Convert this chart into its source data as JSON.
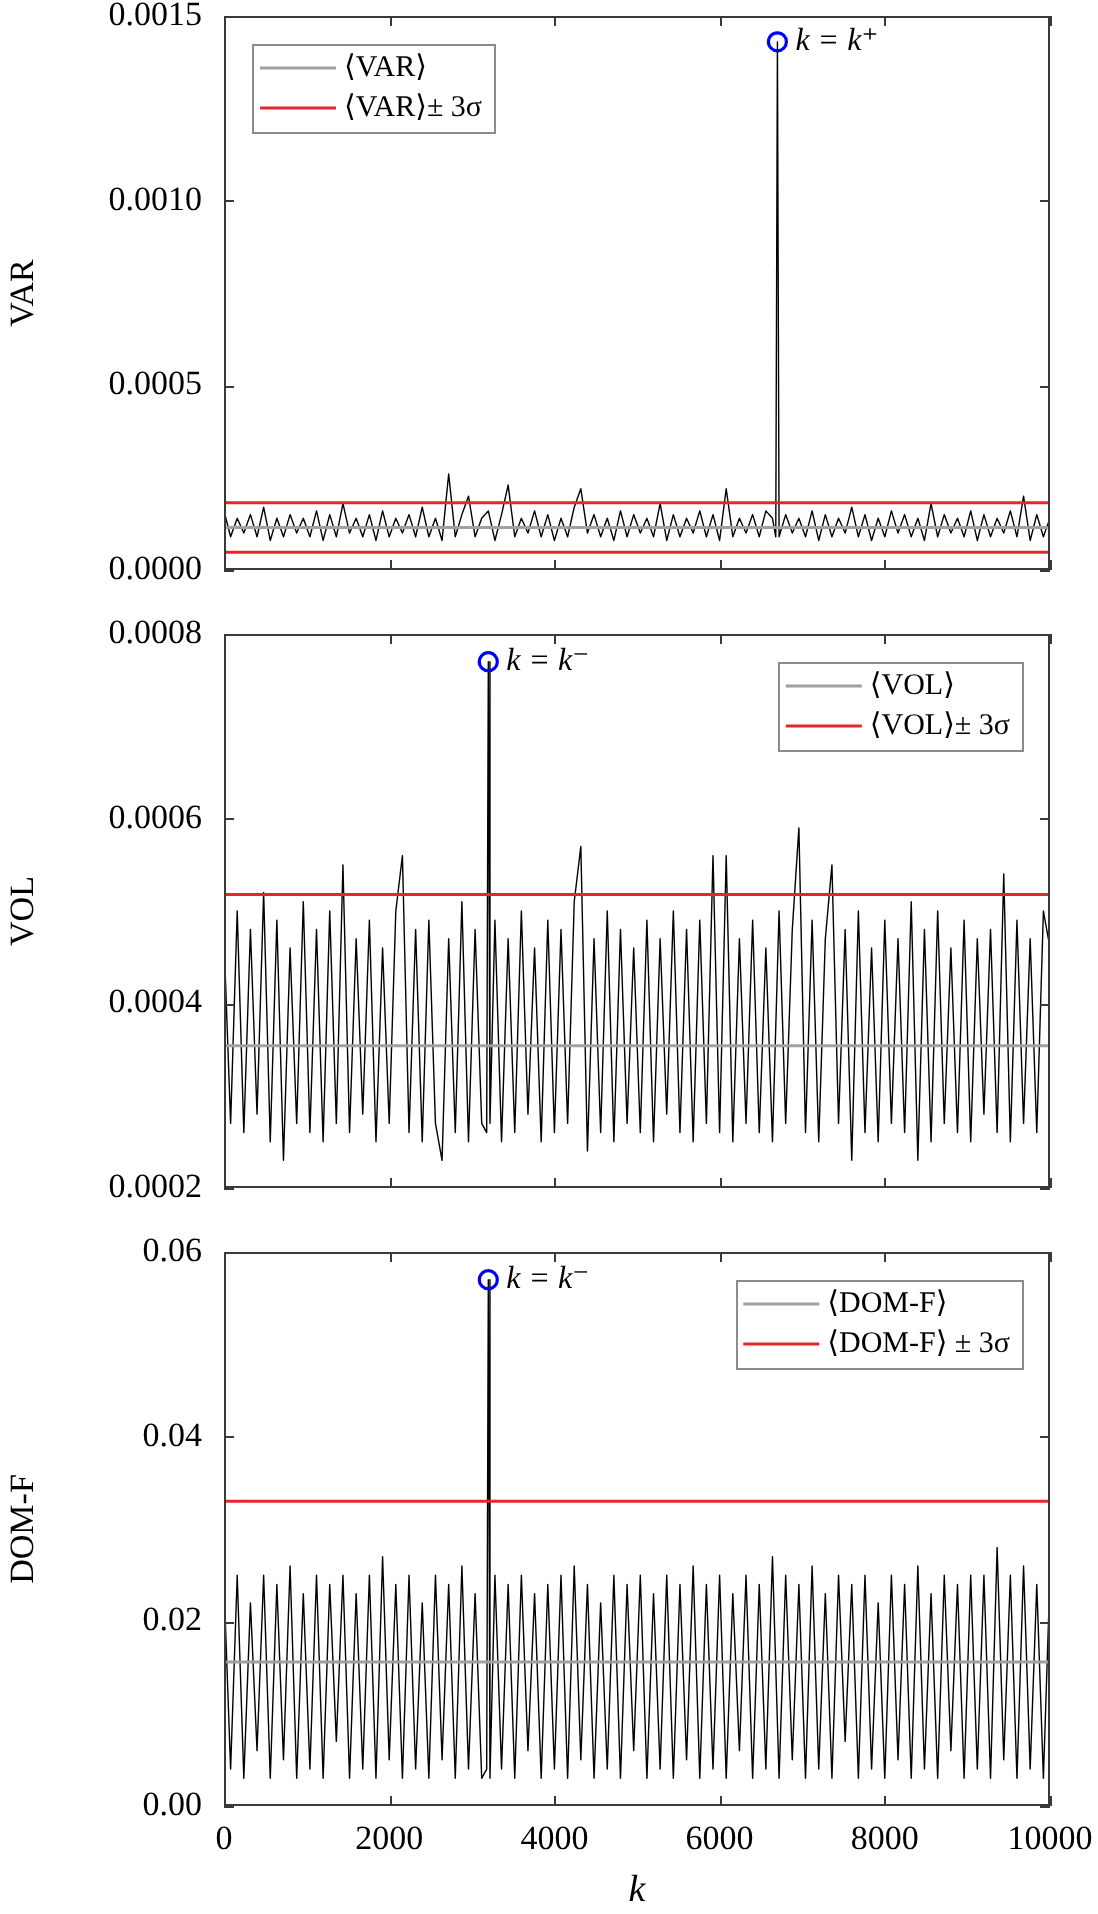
{
  "chart_data": [
    {
      "type": "line",
      "ylabel": "VAR",
      "legend": "top left",
      "tick_labels": "y",
      "xlim": [
        0,
        10000
      ],
      "xticks": [
        0,
        2000,
        4000,
        6000,
        8000,
        10000
      ],
      "ylim": [
        0,
        0.0015
      ],
      "yticks": [
        {
          "value": 0,
          "label": "0.0000"
        },
        0.0005,
        {
          "value": 0.001,
          "label": "0.0010"
        },
        0.0015
      ],
      "x": [
        0,
        80,
        160,
        240,
        320,
        400,
        480,
        560,
        640,
        720,
        800,
        880,
        960,
        1040,
        1120,
        1200,
        1280,
        1360,
        1440,
        1520,
        1600,
        1680,
        1760,
        1840,
        1920,
        2000,
        2080,
        2160,
        2240,
        2320,
        2400,
        2480,
        2560,
        2640,
        2720,
        2800,
        2880,
        2960,
        3040,
        3120,
        3200,
        3280,
        3360,
        3440,
        3520,
        3600,
        3680,
        3760,
        3840,
        3920,
        4000,
        4080,
        4160,
        4240,
        4320,
        4400,
        4480,
        4560,
        4640,
        4720,
        4800,
        4880,
        4960,
        5040,
        5120,
        5200,
        5280,
        5360,
        5440,
        5520,
        5600,
        5680,
        5760,
        5840,
        5920,
        6000,
        6080,
        6160,
        6240,
        6320,
        6400,
        6480,
        6560,
        6640,
        6680,
        6700,
        6720,
        6800,
        6880,
        6960,
        7040,
        7120,
        7200,
        7280,
        7360,
        7440,
        7520,
        7600,
        7680,
        7760,
        7840,
        7920,
        8000,
        8080,
        8160,
        8240,
        8320,
        8400,
        8480,
        8560,
        8640,
        8720,
        8800,
        8880,
        8960,
        9040,
        9120,
        9200,
        9280,
        9360,
        9440,
        9520,
        9600,
        9680,
        9760,
        9840,
        9920,
        10000
      ],
      "series": [
        {
          "color": "#000000",
          "values": [
            0.00016,
            9e-05,
            0.00014,
            0.0001,
            0.00015,
            9e-05,
            0.00017,
            8e-05,
            0.00014,
            9e-05,
            0.00015,
            0.0001,
            0.00014,
            9e-05,
            0.00016,
            8e-05,
            0.00015,
            9e-05,
            0.00018,
            0.0001,
            0.00014,
            9e-05,
            0.00015,
            8e-05,
            0.00016,
            9e-05,
            0.00014,
            0.0001,
            0.00015,
            9e-05,
            0.00017,
            9e-05,
            0.00014,
            8e-05,
            0.00026,
            9e-05,
            0.00015,
            0.0002,
            9e-05,
            0.00014,
            0.00016,
            8e-05,
            0.00015,
            0.00023,
            9e-05,
            0.00014,
            0.0001,
            0.00016,
            9e-05,
            0.00015,
            8e-05,
            0.00014,
            9e-05,
            0.00017,
            0.00022,
            0.0001,
            0.00015,
            9e-05,
            0.00014,
            8e-05,
            0.00016,
            9e-05,
            0.00015,
            0.0001,
            0.00014,
            9e-05,
            0.00018,
            8e-05,
            0.00015,
            9e-05,
            0.00014,
            0.0001,
            0.00016,
            9e-05,
            0.00015,
            8e-05,
            0.00022,
            9e-05,
            0.00014,
            0.0001,
            0.00015,
            9e-05,
            0.00016,
            0.00014,
            9e-05,
            0.00143,
            9e-05,
            0.00015,
            0.0001,
            0.00014,
            9e-05,
            0.00016,
            8e-05,
            0.00015,
            9e-05,
            0.00014,
            0.0001,
            0.00017,
            9e-05,
            0.00015,
            8e-05,
            0.00014,
            9e-05,
            0.00016,
            0.0001,
            0.00015,
            9e-05,
            0.00014,
            8e-05,
            0.00018,
            9e-05,
            0.00015,
            0.0001,
            0.00014,
            9e-05,
            0.00016,
            8e-05,
            0.00015,
            9e-05,
            0.00014,
            0.0001,
            0.00016,
            9e-05,
            0.0002,
            8e-05,
            0.00015,
            9e-05,
            0.00014
          ]
        },
        {
          "type": "scatter",
          "name": "k = k⁺",
          "color": "#0000ff",
          "marker": "circle",
          "values": [
            null,
            null,
            null,
            null,
            null,
            null,
            null,
            null,
            null,
            null,
            null,
            null,
            null,
            null,
            null,
            null,
            null,
            null,
            null,
            null,
            null,
            null,
            null,
            null,
            null,
            null,
            null,
            null,
            null,
            null,
            null,
            null,
            null,
            null,
            null,
            null,
            null,
            null,
            null,
            null,
            null,
            null,
            null,
            null,
            null,
            null,
            null,
            null,
            null,
            null,
            null,
            null,
            null,
            null,
            null,
            null,
            null,
            null,
            null,
            null,
            null,
            null,
            null,
            null,
            null,
            null,
            null,
            null,
            null,
            null,
            null,
            null,
            null,
            null,
            null,
            null,
            null,
            null,
            null,
            null,
            null,
            null,
            null,
            null,
            null,
            0.00143,
            null,
            null,
            null,
            null,
            null,
            null,
            null,
            null,
            null,
            null,
            null,
            null,
            null,
            null,
            null,
            null,
            null,
            null,
            null,
            null,
            null,
            null,
            null,
            null,
            null,
            null,
            null,
            null,
            null,
            null,
            null,
            null,
            null,
            null,
            null,
            null,
            null,
            null,
            null,
            null,
            null,
            null
          ]
        }
      ],
      "ref_lines": [
        {
          "axis": "y",
          "value": 0.000115,
          "label": "⟨VAR⟩",
          "color": "#a0a0a0"
        },
        {
          "axis": "y",
          "value": 0.000182,
          "label": "⟨VAR⟩± 3σ",
          "color": "#e8262a"
        },
        {
          "axis": "y",
          "value": 4.8e-05,
          "color": "#e8262a"
        }
      ]
    },
    {
      "type": "line",
      "ylabel": "VOL",
      "legend": "top right",
      "tick_labels": "y",
      "xlim": [
        0,
        10000
      ],
      "xticks": [
        0,
        2000,
        4000,
        6000,
        8000,
        10000
      ],
      "ylim": [
        0.0002,
        0.0008
      ],
      "yticks": [
        0.0002,
        0.0004,
        0.0006,
        0.0008
      ],
      "x": [
        0,
        80,
        160,
        240,
        320,
        400,
        480,
        560,
        640,
        720,
        800,
        880,
        960,
        1040,
        1120,
        1200,
        1280,
        1360,
        1440,
        1520,
        1600,
        1680,
        1760,
        1840,
        1920,
        2000,
        2080,
        2160,
        2240,
        2320,
        2400,
        2480,
        2560,
        2640,
        2720,
        2800,
        2880,
        2960,
        3040,
        3120,
        3180,
        3200,
        3220,
        3280,
        3360,
        3440,
        3520,
        3600,
        3680,
        3760,
        3840,
        3920,
        4000,
        4080,
        4160,
        4240,
        4320,
        4400,
        4480,
        4560,
        4640,
        4720,
        4800,
        4880,
        4960,
        5040,
        5120,
        5200,
        5280,
        5360,
        5440,
        5520,
        5600,
        5680,
        5760,
        5840,
        5920,
        6000,
        6080,
        6160,
        6240,
        6320,
        6400,
        6480,
        6560,
        6640,
        6720,
        6800,
        6880,
        6960,
        7040,
        7120,
        7200,
        7280,
        7360,
        7440,
        7520,
        7600,
        7680,
        7760,
        7840,
        7920,
        8000,
        8080,
        8160,
        8240,
        8320,
        8400,
        8480,
        8560,
        8640,
        8720,
        8800,
        8880,
        8960,
        9040,
        9120,
        9200,
        9280,
        9360,
        9440,
        9520,
        9600,
        9680,
        9760,
        9840,
        9920,
        10000
      ],
      "series": [
        {
          "color": "#000000",
          "values": [
            0.00047,
            0.00027,
            0.0005,
            0.00026,
            0.00048,
            0.00028,
            0.00052,
            0.00025,
            0.00049,
            0.00023,
            0.00046,
            0.00027,
            0.00051,
            0.00026,
            0.00048,
            0.00025,
            0.0005,
            0.00027,
            0.00055,
            0.00026,
            0.00047,
            0.00028,
            0.00049,
            0.00025,
            0.00046,
            0.00027,
            0.0005,
            0.00056,
            0.00026,
            0.00048,
            0.00025,
            0.00049,
            0.00027,
            0.00023,
            0.00047,
            0.00026,
            0.00051,
            0.00025,
            0.00048,
            0.00027,
            0.00026,
            0.00077,
            0.00027,
            0.00049,
            0.00025,
            0.00047,
            0.00026,
            0.0005,
            0.00028,
            0.00046,
            0.00025,
            0.00049,
            0.00026,
            0.00048,
            0.00027,
            0.00051,
            0.00057,
            0.00024,
            0.00047,
            0.00026,
            0.0005,
            0.00025,
            0.00048,
            0.00027,
            0.00046,
            0.00026,
            0.00049,
            0.00025,
            0.00047,
            0.00028,
            0.0005,
            0.00026,
            0.00048,
            0.00025,
            0.00049,
            0.00027,
            0.00056,
            0.00026,
            0.00056,
            0.00025,
            0.00047,
            0.00027,
            0.00049,
            0.00026,
            0.00046,
            0.00025,
            0.0005,
            0.00027,
            0.00048,
            0.00059,
            0.00026,
            0.00049,
            0.00025,
            0.00047,
            0.00055,
            0.00027,
            0.00048,
            0.00023,
            0.0005,
            0.00026,
            0.00046,
            0.00025,
            0.00049,
            0.00027,
            0.00047,
            0.00026,
            0.00051,
            0.00023,
            0.00048,
            0.00025,
            0.0005,
            0.00027,
            0.00046,
            0.00026,
            0.00049,
            0.00025,
            0.00047,
            0.00028,
            0.00048,
            0.00026,
            0.00054,
            0.00025,
            0.00049,
            0.00027,
            0.00047,
            0.00026,
            0.0005,
            0.00046
          ]
        },
        {
          "type": "scatter",
          "name": "k = k⁻",
          "color": "#0000ff",
          "marker": "circle",
          "values": [
            null,
            null,
            null,
            null,
            null,
            null,
            null,
            null,
            null,
            null,
            null,
            null,
            null,
            null,
            null,
            null,
            null,
            null,
            null,
            null,
            null,
            null,
            null,
            null,
            null,
            null,
            null,
            null,
            null,
            null,
            null,
            null,
            null,
            null,
            null,
            null,
            null,
            null,
            null,
            null,
            null,
            0.00077,
            null,
            null,
            null,
            null,
            null,
            null,
            null,
            null,
            null,
            null,
            null,
            null,
            null,
            null,
            null,
            null,
            null,
            null,
            null,
            null,
            null,
            null,
            null,
            null,
            null,
            null,
            null,
            null,
            null,
            null,
            null,
            null,
            null,
            null,
            null,
            null,
            null,
            null,
            null,
            null,
            null,
            null,
            null,
            null,
            null,
            null,
            null,
            null,
            null,
            null,
            null,
            null,
            null,
            null,
            null,
            null,
            null,
            null,
            null,
            null,
            null,
            null,
            null,
            null,
            null,
            null,
            null,
            null,
            null,
            null,
            null,
            null,
            null,
            null,
            null,
            null,
            null,
            null,
            null,
            null,
            null,
            null,
            null,
            null,
            null,
            null
          ]
        }
      ],
      "ref_lines": [
        {
          "axis": "y",
          "value": 0.000354,
          "label": "⟨VOL⟩",
          "color": "#a0a0a0"
        },
        {
          "axis": "y",
          "value": 0.000518,
          "label": "⟨VOL⟩± 3σ",
          "color": "#e8262a"
        }
      ]
    },
    {
      "type": "line",
      "xlabel": "k",
      "ylabel": "DOM-F",
      "legend": "top right",
      "xlim": [
        0,
        10000
      ],
      "xticks": [
        0,
        2000,
        4000,
        6000,
        8000,
        10000
      ],
      "ylim": [
        0,
        0.06
      ],
      "yticks": [
        {
          "value": 0,
          "label": "0.00"
        },
        {
          "value": 0.02,
          "label": "0.02"
        },
        {
          "value": 0.04,
          "label": "0.04"
        },
        {
          "value": 0.06,
          "label": "0.06"
        }
      ],
      "x": [
        0,
        80,
        160,
        240,
        320,
        400,
        480,
        560,
        640,
        720,
        800,
        880,
        960,
        1040,
        1120,
        1200,
        1280,
        1360,
        1440,
        1520,
        1600,
        1680,
        1760,
        1840,
        1920,
        2000,
        2080,
        2160,
        2240,
        2320,
        2400,
        2480,
        2560,
        2640,
        2720,
        2800,
        2880,
        2960,
        3040,
        3120,
        3180,
        3200,
        3220,
        3280,
        3360,
        3440,
        3520,
        3600,
        3680,
        3760,
        3840,
        3920,
        4000,
        4080,
        4160,
        4240,
        4320,
        4400,
        4480,
        4560,
        4640,
        4720,
        4800,
        4880,
        4960,
        5040,
        5120,
        5200,
        5280,
        5360,
        5440,
        5520,
        5600,
        5680,
        5760,
        5840,
        5920,
        6000,
        6080,
        6160,
        6240,
        6320,
        6400,
        6480,
        6560,
        6640,
        6720,
        6800,
        6880,
        6960,
        7040,
        7120,
        7200,
        7280,
        7360,
        7440,
        7520,
        7600,
        7680,
        7760,
        7840,
        7920,
        8000,
        8080,
        8160,
        8240,
        8320,
        8400,
        8480,
        8560,
        8640,
        8720,
        8800,
        8880,
        8960,
        9040,
        9120,
        9200,
        9280,
        9360,
        9440,
        9520,
        9600,
        9680,
        9760,
        9840,
        9920,
        10000
      ],
      "series": [
        {
          "color": "#000000",
          "values": [
            0.024,
            0.004,
            0.025,
            0.003,
            0.022,
            0.006,
            0.025,
            0.003,
            0.024,
            0.005,
            0.026,
            0.003,
            0.023,
            0.004,
            0.025,
            0.003,
            0.024,
            0.007,
            0.025,
            0.003,
            0.023,
            0.004,
            0.025,
            0.003,
            0.027,
            0.005,
            0.024,
            0.003,
            0.025,
            0.004,
            0.022,
            0.003,
            0.025,
            0.005,
            0.024,
            0.003,
            0.026,
            0.004,
            0.023,
            0.003,
            0.004,
            0.057,
            0.003,
            0.025,
            0.004,
            0.024,
            0.003,
            0.025,
            0.006,
            0.023,
            0.003,
            0.024,
            0.004,
            0.025,
            0.003,
            0.026,
            0.005,
            0.024,
            0.003,
            0.022,
            0.004,
            0.025,
            0.003,
            0.024,
            0.006,
            0.025,
            0.003,
            0.023,
            0.004,
            0.025,
            0.003,
            0.024,
            0.005,
            0.026,
            0.003,
            0.024,
            0.004,
            0.025,
            0.003,
            0.023,
            0.006,
            0.025,
            0.003,
            0.024,
            0.004,
            0.027,
            0.003,
            0.025,
            0.005,
            0.024,
            0.003,
            0.026,
            0.004,
            0.023,
            0.003,
            0.025,
            0.007,
            0.024,
            0.003,
            0.025,
            0.004,
            0.022,
            0.003,
            0.025,
            0.005,
            0.024,
            0.003,
            0.026,
            0.004,
            0.023,
            0.003,
            0.025,
            0.006,
            0.024,
            0.003,
            0.025,
            0.004,
            0.025,
            0.003,
            0.028,
            0.005,
            0.025,
            0.003,
            0.026,
            0.004,
            0.024,
            0.003,
            0.025
          ]
        },
        {
          "type": "scatter",
          "name": "k = k⁻",
          "color": "#0000ff",
          "marker": "circle",
          "values": [
            null,
            null,
            null,
            null,
            null,
            null,
            null,
            null,
            null,
            null,
            null,
            null,
            null,
            null,
            null,
            null,
            null,
            null,
            null,
            null,
            null,
            null,
            null,
            null,
            null,
            null,
            null,
            null,
            null,
            null,
            null,
            null,
            null,
            null,
            null,
            null,
            null,
            null,
            null,
            null,
            null,
            0.057,
            null,
            null,
            null,
            null,
            null,
            null,
            null,
            null,
            null,
            null,
            null,
            null,
            null,
            null,
            null,
            null,
            null,
            null,
            null,
            null,
            null,
            null,
            null,
            null,
            null,
            null,
            null,
            null,
            null,
            null,
            null,
            null,
            null,
            null,
            null,
            null,
            null,
            null,
            null,
            null,
            null,
            null,
            null,
            null,
            null,
            null,
            null,
            null,
            null,
            null,
            null,
            null,
            null,
            null,
            null,
            null,
            null,
            null,
            null,
            null,
            null,
            null,
            null,
            null,
            null,
            null,
            null,
            null,
            null,
            null,
            null,
            null,
            null,
            null,
            null,
            null,
            null,
            null,
            null,
            null,
            null,
            null,
            null,
            null,
            null,
            null
          ]
        }
      ],
      "ref_lines": [
        {
          "axis": "y",
          "value": 0.0156,
          "label": "⟨DOM-F⟩",
          "color": "#a0a0a0"
        },
        {
          "axis": "y",
          "value": 0.033,
          "label": "⟨DOM-F⟩ ± 3σ",
          "color": "#e8262a"
        }
      ]
    }
  ]
}
